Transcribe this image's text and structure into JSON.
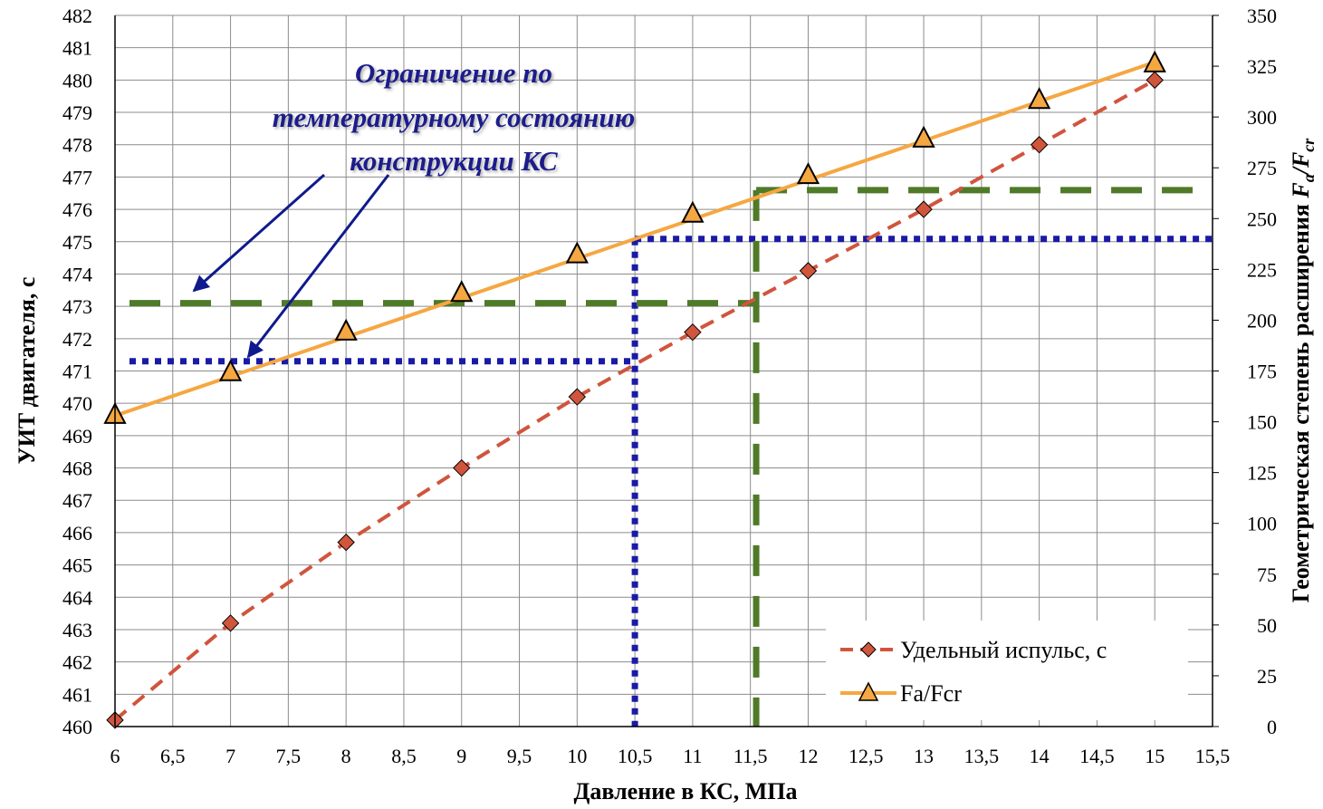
{
  "chart_data": {
    "type": "line",
    "x": [
      6,
      7,
      8,
      9,
      10,
      11,
      12,
      13,
      14,
      15
    ],
    "series": [
      {
        "name": "Удельный испульс, с",
        "axis": "left",
        "values": [
          460.2,
          463.2,
          465.7,
          468.0,
          470.2,
          472.2,
          474.1,
          476.0,
          478.0,
          480.0
        ],
        "color": "#D0553D",
        "line_style": "dashed",
        "marker": "diamond",
        "marker_color": "#D0553D"
      },
      {
        "name": "Fa/Fcr",
        "axis": "right",
        "values": [
          153,
          174,
          194,
          213,
          232,
          252,
          271,
          289,
          308,
          326
        ],
        "fit_line": [
          [
            6,
            153
          ],
          [
            15,
            327
          ]
        ],
        "color": "#F5A742",
        "line_style": "solid",
        "marker": "triangle",
        "marker_color": "#F5A742"
      }
    ],
    "xlabel": "Давление в КС, МПа",
    "ylabel": "УИТ двигателя, с",
    "y2label_main": "Геометрическая степень расширения ",
    "y2label_formula": {
      "F1": "F",
      "sub1": "a",
      "slash": "/",
      "F2": "F",
      "sub2": "cr"
    },
    "xlim": [
      6,
      15.5
    ],
    "ylim": [
      460,
      482
    ],
    "y2lim": [
      0,
      350
    ],
    "xticks": [
      "6",
      "6,5",
      "7",
      "7,5",
      "8",
      "8,5",
      "9",
      "9,5",
      "10",
      "10,5",
      "11",
      "11,5",
      "12",
      "12,5",
      "13",
      "13,5",
      "14",
      "14,5",
      "15",
      "15,5"
    ],
    "yticks": [
      "460",
      "461",
      "462",
      "463",
      "464",
      "465",
      "466",
      "467",
      "468",
      "469",
      "470",
      "471",
      "472",
      "473",
      "474",
      "475",
      "476",
      "477",
      "478",
      "479",
      "480",
      "481",
      "482"
    ],
    "y2ticks": [
      "0",
      "25",
      "50",
      "75",
      "100",
      "125",
      "150",
      "175",
      "200",
      "225",
      "250",
      "275",
      "300",
      "325",
      "350"
    ],
    "grid": true,
    "legend_position": "bottom-right",
    "reference_lines": [
      {
        "kind": "blue-dotted",
        "color": "#1A1AA6",
        "y_left": 471.3,
        "x": 10.5,
        "y2": 240
      },
      {
        "kind": "green-dashed",
        "color": "#4F7A28",
        "y_left": 473.1,
        "x": 11.55,
        "y2": 264
      }
    ],
    "annotation": {
      "lines": [
        "Ограничение по",
        "температурному состоянию",
        "конструкции КС"
      ],
      "color": "#1A1A8C"
    }
  }
}
